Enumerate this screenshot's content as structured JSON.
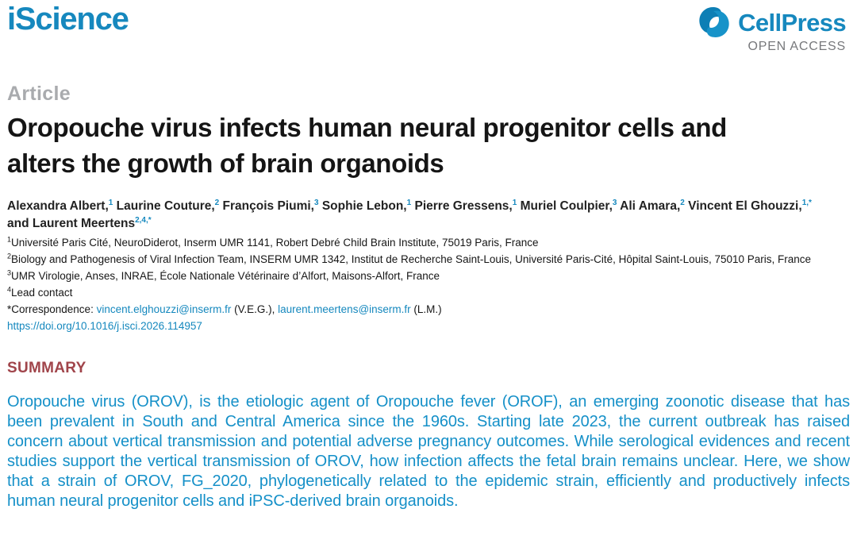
{
  "header": {
    "journal": "iScience",
    "publisher": "CellPress",
    "open_access": "OPEN ACCESS",
    "icons": {
      "cellpress_mark": "cellpress-comma-mark"
    }
  },
  "article": {
    "label": "Article",
    "title": "Oropouche virus infects human neural progenitor cells and alters the growth of brain organoids"
  },
  "authors": [
    {
      "name": "Alexandra Albert,",
      "sup": "1"
    },
    {
      "name": "Laurine Couture,",
      "sup": "2"
    },
    {
      "name": "François Piumi,",
      "sup": "3"
    },
    {
      "name": "Sophie Lebon,",
      "sup": "1"
    },
    {
      "name": "Pierre Gressens,",
      "sup": "1"
    },
    {
      "name": "Muriel Coulpier,",
      "sup": "3"
    },
    {
      "name": "Ali Amara,",
      "sup": "2"
    },
    {
      "name": "Vincent El Ghouzzi,",
      "sup": "1,*"
    },
    {
      "name": "and Laurent Meertens",
      "sup": "2,4,*"
    }
  ],
  "affiliations": [
    {
      "sup": "1",
      "text": "Université Paris Cité, NeuroDiderot, Inserm UMR 1141, Robert Debré Child Brain Institute, 75019 Paris, France"
    },
    {
      "sup": "2",
      "text": "Biology and Pathogenesis of Viral Infection Team, INSERM UMR 1342, Institut de Recherche Saint-Louis, Université Paris-Cité, Hôpital Saint-Louis, 75010 Paris, France"
    },
    {
      "sup": "3",
      "text": "UMR Virologie, Anses, INRAE, École Nationale Vétérinaire d’Alfort, Maisons-Alfort, France"
    },
    {
      "sup": "4",
      "text": "Lead contact"
    }
  ],
  "correspondence": {
    "prefix": "*Correspondence: ",
    "email1": "vincent.elghouzzi@inserm.fr",
    "mid1": " (V.E.G.), ",
    "email2": "laurent.meertens@inserm.fr",
    "mid2": " (L.M.)"
  },
  "doi": "https://doi.org/10.1016/j.isci.2026.114957",
  "summary": {
    "heading": "SUMMARY",
    "text": "Oropouche virus (OROV), is the etiologic agent of Oropouche fever (OROF), an emerging zoonotic disease that has been prevalent in South and Central America since the 1960s. Starting late 2023, the current outbreak has raised concern about vertical transmission and potential adverse pregnancy outcomes. While serological evidences and recent studies support the vertical transmission of OROV, how infection affects the fetal brain remains unclear. Here, we show that a strain of OROV, FG_2020, phylogenetically related to the epidemic strain, efficiently and productively infects human neural progenitor cells and iPSC-derived brain organoids."
  },
  "colors": {
    "brand_blue": "#1688BE",
    "link_blue": "#1588BE",
    "summary_blue": "#1590C8",
    "summary_heading_red": "#A0444A",
    "article_gray": "#A9ABAE",
    "open_access_gray": "#77787B",
    "title_black": "#151515"
  }
}
